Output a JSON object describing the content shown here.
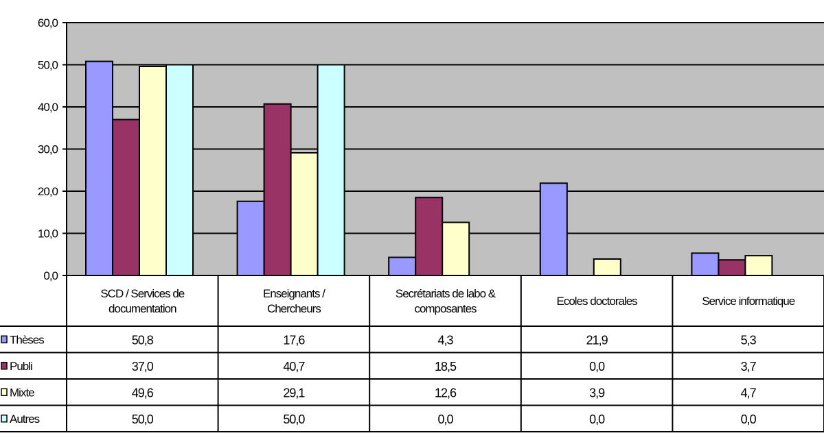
{
  "chart_data": {
    "type": "bar",
    "title": "",
    "xlabel": "",
    "ylabel": "",
    "ylim": [
      0,
      60
    ],
    "yticks": [
      "0,0",
      "10,0",
      "20,0",
      "30,0",
      "40,0",
      "50,0",
      "60,0"
    ],
    "grid": true,
    "categories": [
      [
        "SCD / Services de",
        "documentation"
      ],
      [
        "Enseignants /",
        "Chercheurs"
      ],
      [
        "Secrétariats de labo &",
        "composantes"
      ],
      [
        "Ecoles doctorales"
      ],
      [
        "Service informatique"
      ]
    ],
    "series": [
      {
        "name": "Thèses",
        "color": "#9999ff",
        "values": [
          50.8,
          17.6,
          4.3,
          21.9,
          5.3
        ],
        "labels": [
          "50,8",
          "17,6",
          "4,3",
          "21,9",
          "5,3"
        ]
      },
      {
        "name": "Publi",
        "color": "#993366",
        "values": [
          37.0,
          40.7,
          18.5,
          0.0,
          3.7
        ],
        "labels": [
          "37,0",
          "40,7",
          "18,5",
          "0,0",
          "3,7"
        ]
      },
      {
        "name": "Mixte",
        "color": "#ffffcc",
        "values": [
          49.6,
          29.1,
          12.6,
          3.9,
          4.7
        ],
        "labels": [
          "49,6",
          "29,1",
          "12,6",
          "3,9",
          "4,7"
        ]
      },
      {
        "name": "Autres",
        "color": "#ccffff",
        "values": [
          50.0,
          50.0,
          0.0,
          0.0,
          0.0
        ],
        "labels": [
          "50,0",
          "50,0",
          "0,0",
          "0,0",
          "0,0"
        ]
      }
    ],
    "plot_background": "#c0c0c0"
  }
}
